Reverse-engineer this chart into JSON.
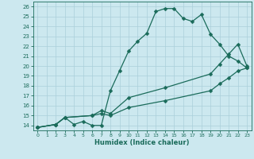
{
  "xlabel": "Humidex (Indice chaleur)",
  "bg_color": "#cce8ef",
  "grid_color": "#aacfda",
  "line_color": "#1a6b5a",
  "xlim": [
    -0.5,
    23.5
  ],
  "ylim": [
    13.5,
    26.5
  ],
  "xticks": [
    0,
    1,
    2,
    3,
    4,
    5,
    6,
    7,
    8,
    9,
    10,
    11,
    12,
    13,
    14,
    15,
    16,
    17,
    18,
    19,
    20,
    21,
    22,
    23
  ],
  "yticks": [
    14,
    15,
    16,
    17,
    18,
    19,
    20,
    21,
    22,
    23,
    24,
    25,
    26
  ],
  "curve1_x": [
    0,
    2,
    3,
    4,
    5,
    6,
    7,
    8,
    9,
    10,
    11,
    12,
    13,
    14,
    15,
    16,
    17,
    18,
    19,
    20,
    21,
    22,
    23
  ],
  "curve1_y": [
    13.8,
    14.1,
    14.8,
    14.1,
    14.4,
    14.0,
    14.0,
    17.5,
    19.5,
    21.5,
    22.5,
    23.3,
    25.5,
    25.8,
    25.8,
    24.8,
    24.5,
    25.2,
    23.2,
    22.2,
    21.0,
    20.5,
    19.8
  ],
  "curve2_x": [
    0,
    2,
    3,
    6,
    7,
    8,
    10,
    14,
    19,
    20,
    21,
    22,
    23
  ],
  "curve2_y": [
    13.8,
    14.1,
    14.8,
    15.0,
    15.5,
    15.2,
    16.8,
    17.8,
    19.2,
    20.2,
    21.2,
    22.2,
    20.0
  ],
  "curve3_x": [
    0,
    2,
    3,
    6,
    7,
    8,
    10,
    14,
    19,
    20,
    21,
    22,
    23
  ],
  "curve3_y": [
    13.8,
    14.1,
    14.8,
    15.0,
    15.2,
    15.0,
    15.8,
    16.5,
    17.5,
    18.2,
    18.8,
    19.5,
    19.8
  ]
}
